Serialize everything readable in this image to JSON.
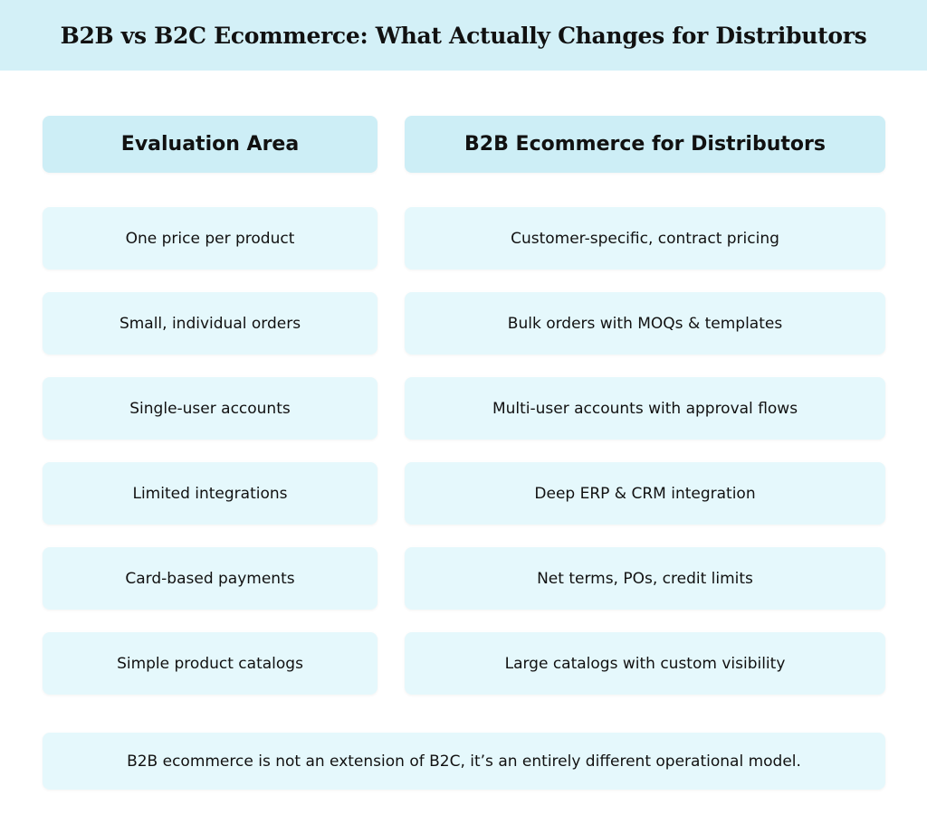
{
  "title": "B2B vs B2C Ecommerce: What Actually Changes for Distributors",
  "headers": [
    "Evaluation Area",
    "B2B Ecommerce for Distributors"
  ],
  "rows": [
    [
      "One price per product",
      "Customer-specific, contract pricing"
    ],
    [
      "Small, individual orders",
      "Bulk orders with MOQs & templates"
    ],
    [
      "Single-user accounts",
      "Multi-user accounts with approval flows"
    ],
    [
      "Limited integrations",
      "Deep ERP & CRM integration"
    ],
    [
      "Card-based payments",
      "Net terms, POs, credit limits"
    ],
    [
      "Simple product catalogs",
      "Large catalogs with custom visibility"
    ]
  ],
  "footer": "B2B ecommerce is not an extension of B2C, it’s an entirely different operational model.",
  "colors": {
    "title_band": "#d3f0f7",
    "header_cell": "#cdeef6",
    "row_cell": "#e5f8fc"
  }
}
